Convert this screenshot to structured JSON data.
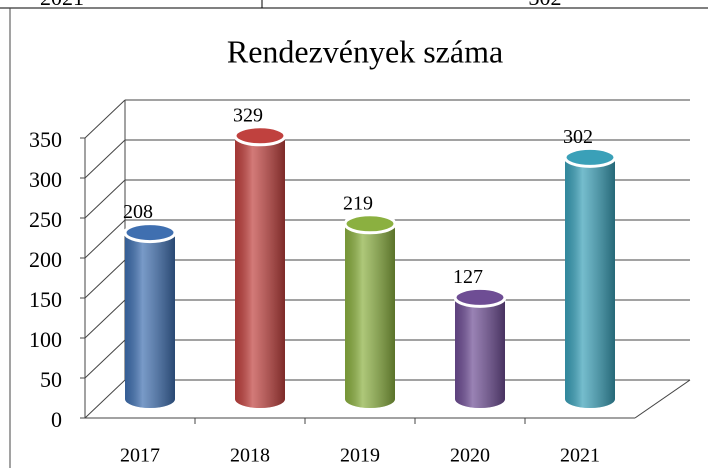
{
  "table": {
    "rows": [
      [
        "2021",
        "302"
      ]
    ]
  },
  "chart_data": {
    "type": "bar3d",
    "title": "Rendezvények száma",
    "categories": [
      "2017",
      "2018",
      "2019",
      "2020",
      "2021"
    ],
    "values": [
      208,
      329,
      219,
      127,
      302
    ],
    "colors": [
      "#3f6fb0",
      "#c0413e",
      "#8bb040",
      "#6e4d94",
      "#3aa0b8"
    ],
    "ylim": [
      0,
      350
    ],
    "yticks": [
      0,
      50,
      100,
      150,
      200,
      250,
      300,
      350
    ],
    "grid": true
  }
}
